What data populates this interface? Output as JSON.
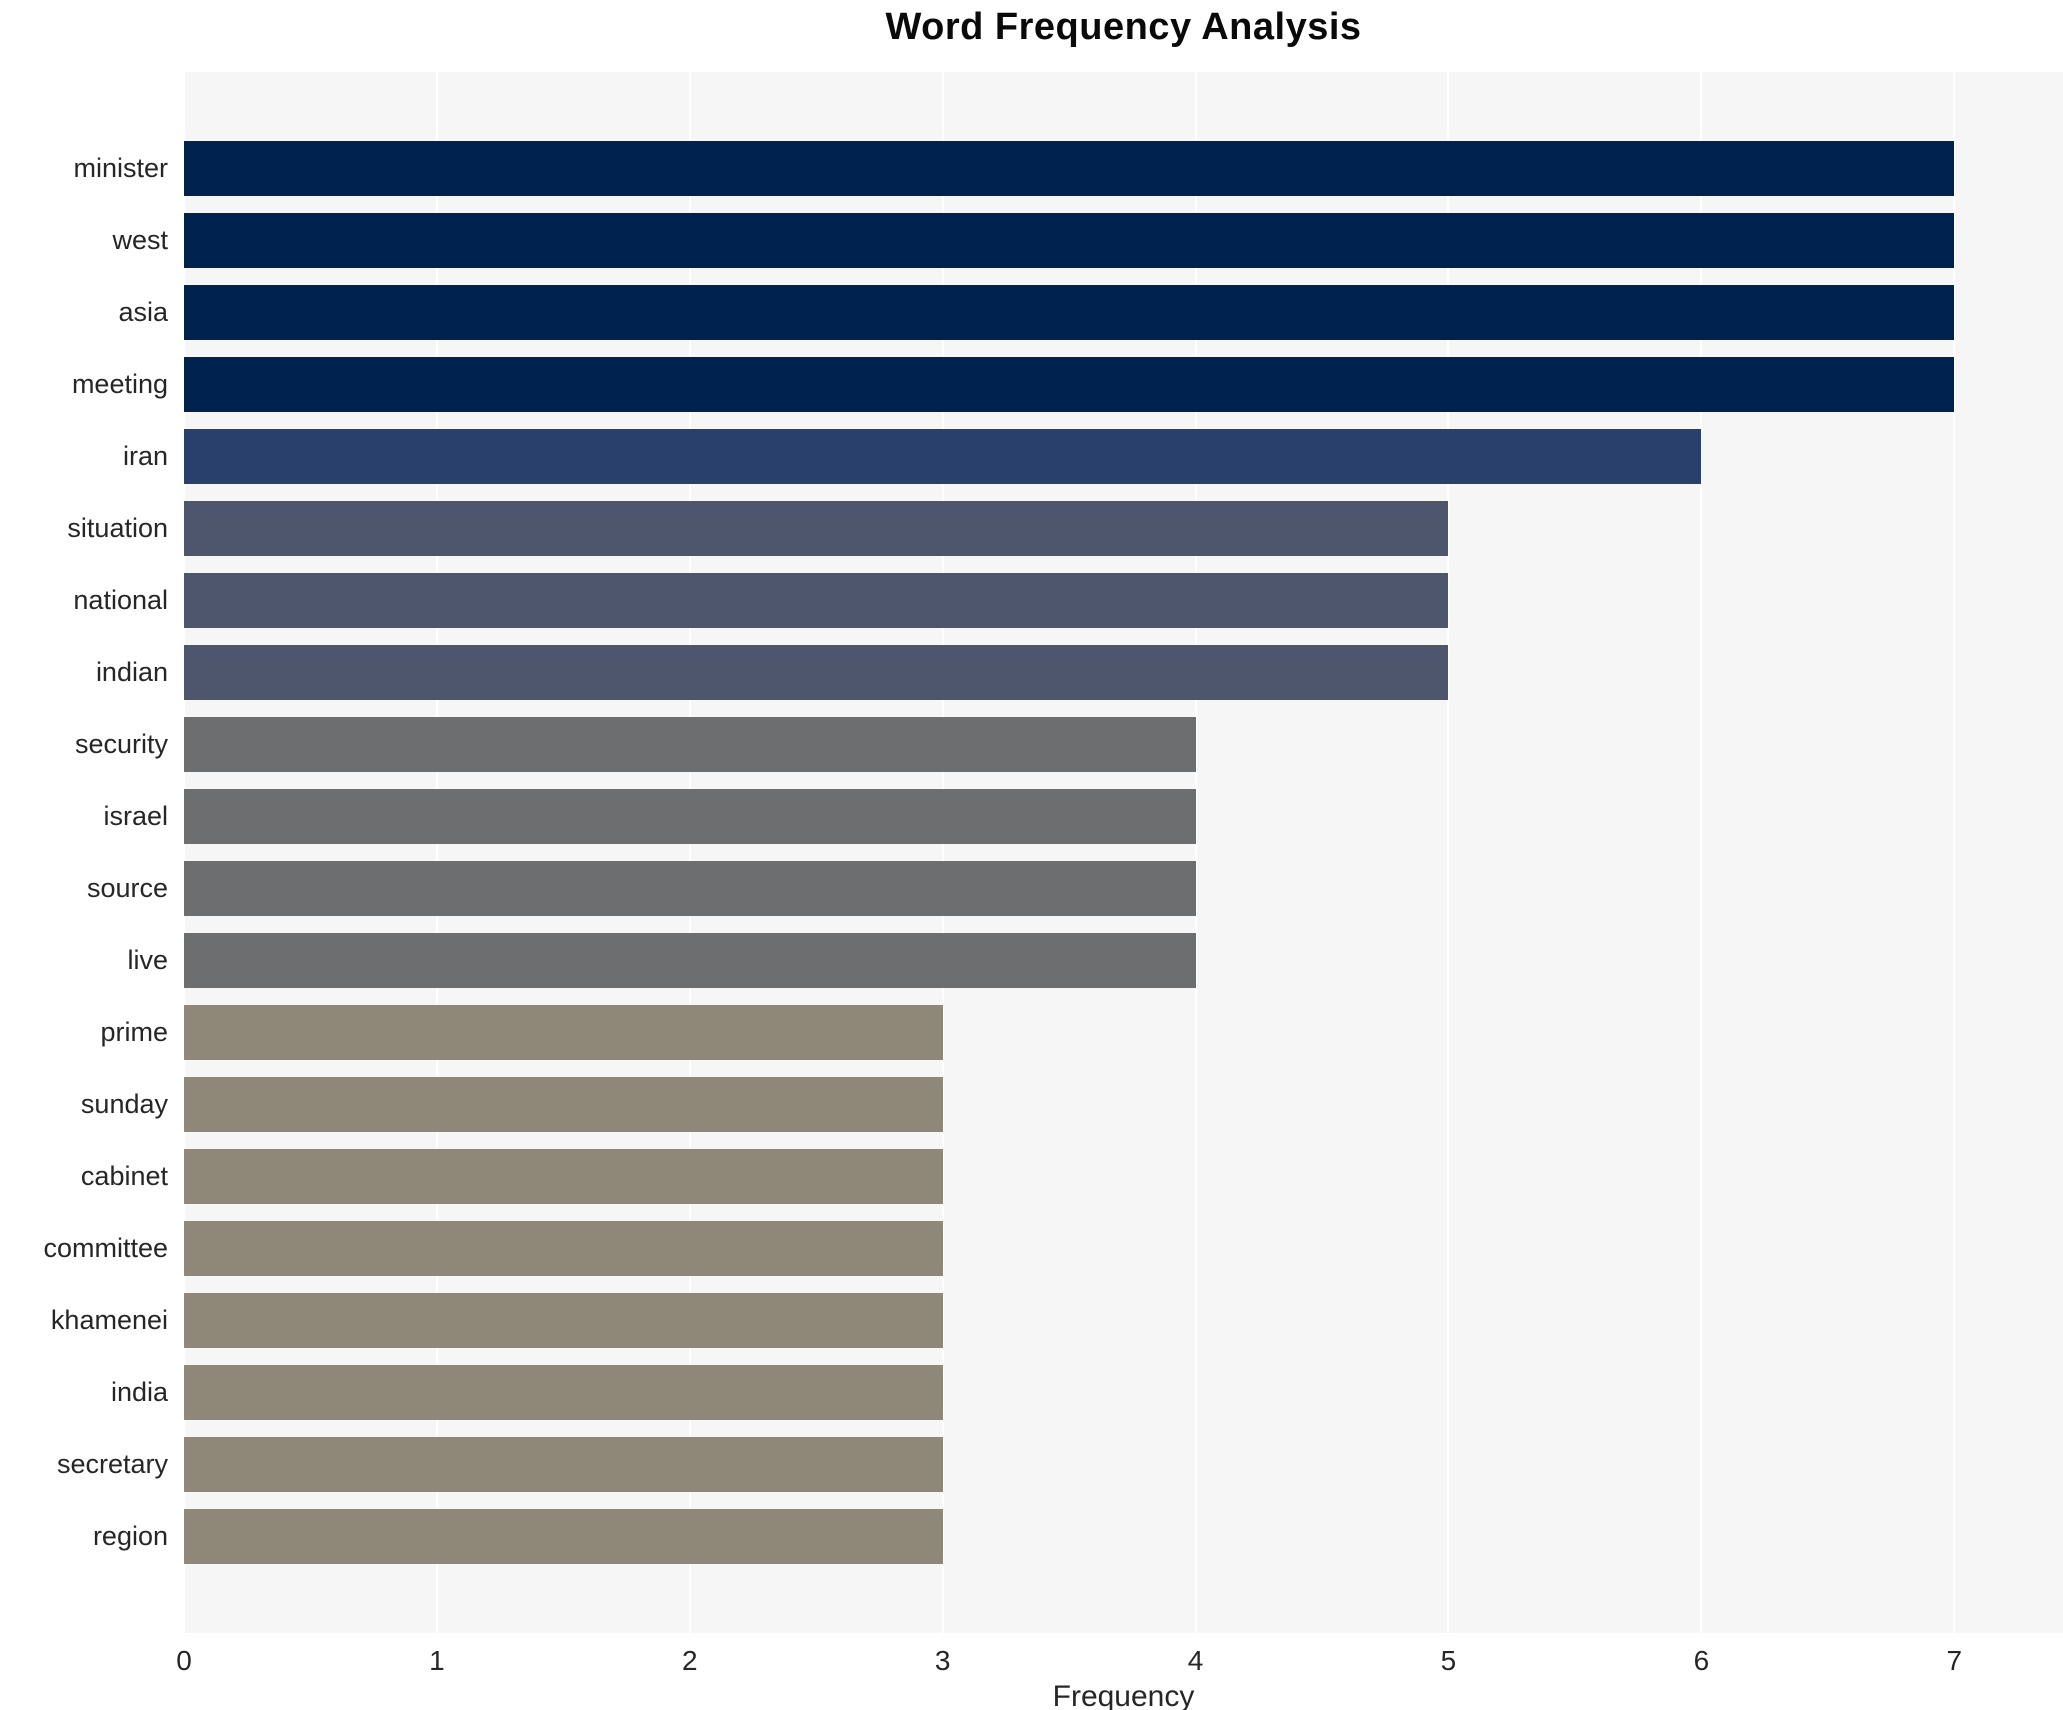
{
  "figure": {
    "background": "#ffffff",
    "plot_background": "#f6f6f7",
    "gridline_color": "#ffffff",
    "text_color": "#262626"
  },
  "chart_data": {
    "type": "bar",
    "orientation": "horizontal",
    "title": "Word Frequency Analysis",
    "xlabel": "Frequency",
    "ylabel": "",
    "categories": [
      "minister",
      "west",
      "asia",
      "meeting",
      "iran",
      "situation",
      "national",
      "indian",
      "security",
      "israel",
      "source",
      "live",
      "prime",
      "sunday",
      "cabinet",
      "committee",
      "khamenei",
      "india",
      "secretary",
      "region"
    ],
    "values": [
      7,
      7,
      7,
      7,
      6,
      5,
      5,
      5,
      4,
      4,
      4,
      4,
      3,
      3,
      3,
      3,
      3,
      3,
      3,
      3
    ],
    "xticks": [
      0,
      1,
      2,
      3,
      4,
      5,
      6,
      7
    ],
    "xlim": [
      0,
      7.43
    ],
    "grid": true,
    "legend_position": "none",
    "bar_colors_by_value": {
      "7": "#00224e",
      "6": "#2a406c",
      "5": "#4d566d",
      "4": "#6c6e70",
      "3": "#8f8878"
    }
  }
}
